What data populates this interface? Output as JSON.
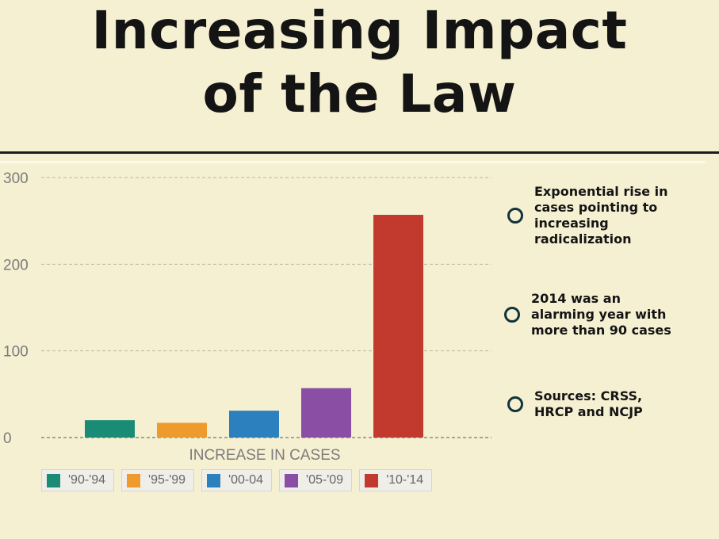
{
  "title": {
    "line1": "Increasing Impact",
    "line2": "of the Law"
  },
  "notes": [
    {
      "text": "Exponential rise in cases pointing to increasing radicalization"
    },
    {
      "text": "2014 was an alarming year with more than 90 cases"
    },
    {
      "text": "Sources: CRSS, HRCP and NCJP"
    }
  ],
  "chart_data": {
    "type": "bar",
    "categories": [
      "'90-'94",
      "'95-'99",
      "'00-04",
      "'05-'09",
      "'10-'14"
    ],
    "values": [
      20,
      17,
      31,
      57,
      257
    ],
    "colors": [
      "#1a8c75",
      "#ef9a2d",
      "#2c80bd",
      "#8a4fa4",
      "#c23a2e"
    ],
    "xlabel": "INCREASE IN CASES",
    "ylim": [
      0,
      300
    ],
    "yticks": [
      0,
      100,
      200,
      300
    ],
    "ytick_labels": [
      "0",
      "100",
      "200",
      "300"
    ],
    "legend_position": "bottom",
    "grid": true
  }
}
